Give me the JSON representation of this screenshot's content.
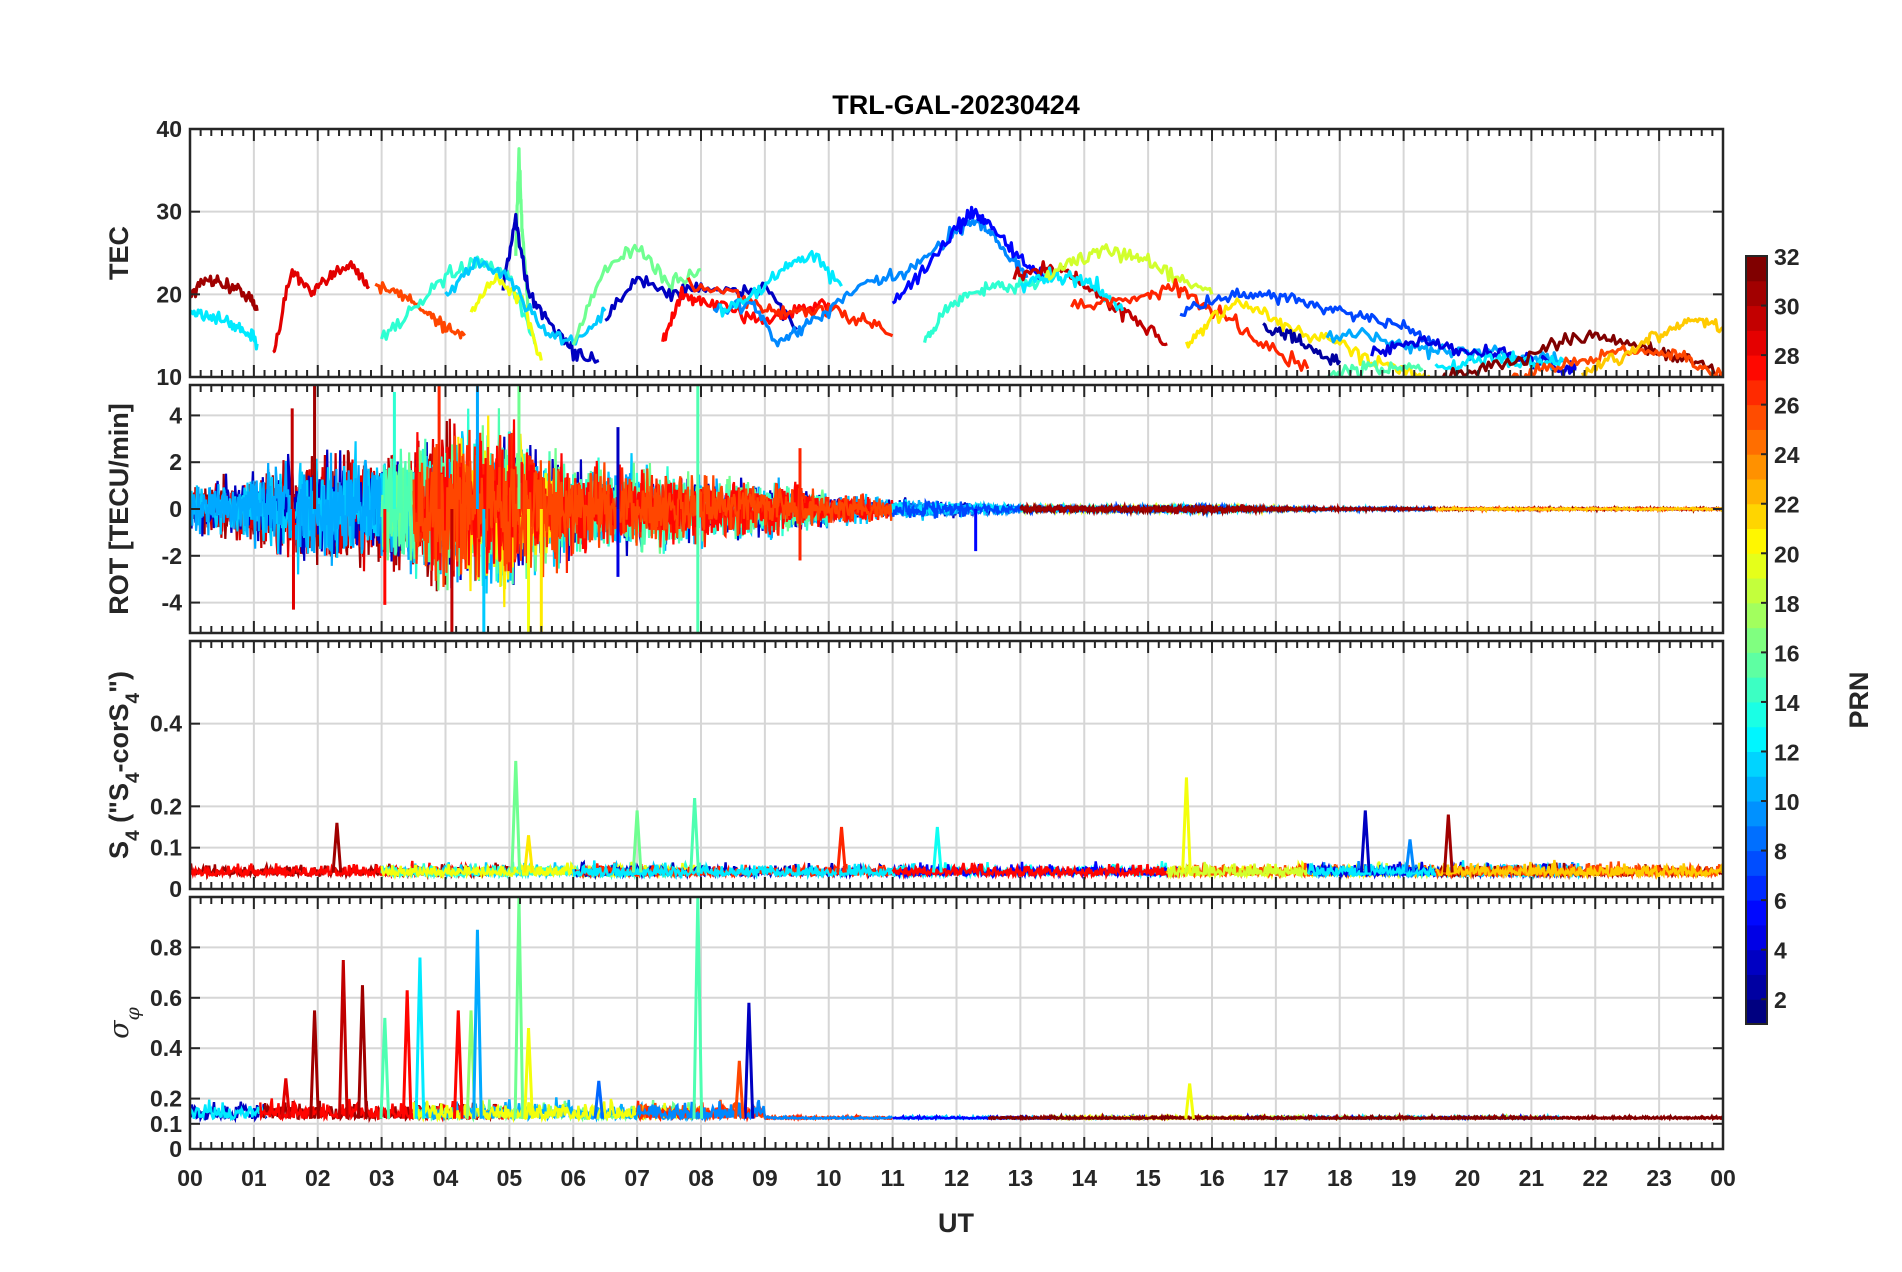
{
  "figure": {
    "title": "TRL-GAL-20230424",
    "xlabel": "UT",
    "x_ticks": [
      "00",
      "01",
      "02",
      "03",
      "04",
      "05",
      "06",
      "07",
      "08",
      "09",
      "10",
      "11",
      "12",
      "13",
      "14",
      "15",
      "16",
      "17",
      "18",
      "19",
      "20",
      "21",
      "22",
      "23",
      "00"
    ]
  },
  "colorbar": {
    "label": "PRN",
    "ticks": [
      "2",
      "4",
      "6",
      "8",
      "10",
      "12",
      "14",
      "16",
      "18",
      "20",
      "22",
      "24",
      "26",
      "28",
      "30",
      "32"
    ],
    "range": [
      1,
      32
    ],
    "colormap": "jet"
  },
  "panels": [
    {
      "id": "tec",
      "ylabel": "TEC",
      "yticks": [
        "10",
        "20",
        "30",
        "40"
      ],
      "ylim": [
        10,
        40
      ]
    },
    {
      "id": "rot",
      "ylabel": "ROT [TECU/min]",
      "yticks": [
        "-4",
        "-2",
        "0",
        "2",
        "4"
      ],
      "ylim": [
        -5.3,
        5.3
      ]
    },
    {
      "id": "s4",
      "ylabel": "S",
      "ylabel_sub": "4",
      "ylabel_rest": " (\"S",
      "ylabel_sub2": "4",
      "ylabel_rest2": "-corS",
      "ylabel_sub3": "4",
      "ylabel_end": "\")",
      "yticks": [
        "0",
        "0.1",
        "0.2",
        "0.4"
      ],
      "ylim": [
        0,
        0.6
      ]
    },
    {
      "id": "sig",
      "ylabel": "σ",
      "ylabel_sub": "φ",
      "yticks": [
        "0",
        "0.1",
        "0.2",
        "0.4",
        "0.6",
        "0.8"
      ],
      "ylim": [
        0,
        1
      ]
    }
  ],
  "chart_data": [
    {
      "type": "line",
      "title": "TRL-GAL-20230424",
      "xlabel": "UT",
      "ylabel": "TEC",
      "xlim": [
        0,
        24
      ],
      "ylim": [
        10,
        40
      ],
      "grid": true,
      "series": [
        {
          "prn": 31,
          "x": [
            0.0,
            0.3,
            0.6,
            0.9,
            1.05
          ],
          "y": [
            20,
            22,
            21,
            20,
            18
          ]
        },
        {
          "prn": 12,
          "x": [
            0.0,
            0.3,
            0.6,
            0.9,
            1.05
          ],
          "y": [
            18,
            17.5,
            16.5,
            15.5,
            14
          ]
        },
        {
          "prn": 29,
          "x": [
            1.3,
            1.6,
            1.9,
            2.2,
            2.5,
            2.8
          ],
          "y": [
            13,
            23,
            20,
            22,
            24,
            21
          ]
        },
        {
          "prn": 26,
          "x": [
            2.9,
            3.3,
            3.7,
            4.0,
            4.3
          ],
          "y": [
            21,
            20,
            18,
            16,
            15
          ]
        },
        {
          "prn": 14,
          "x": [
            3.0,
            3.5,
            4.0,
            4.5,
            5.0,
            5.4
          ],
          "y": [
            15,
            18,
            22,
            24,
            22,
            14
          ]
        },
        {
          "prn": 16,
          "x": [
            5.1,
            5.15,
            5.2,
            5.3
          ],
          "y": [
            25,
            37,
            28,
            18
          ]
        },
        {
          "prn": 3,
          "x": [
            4.9,
            5.1,
            5.3,
            5.6,
            6.0,
            6.4
          ],
          "y": [
            21,
            29,
            20,
            17,
            13,
            12
          ]
        },
        {
          "prn": 20,
          "x": [
            4.4,
            4.8,
            5.2,
            5.5
          ],
          "y": [
            18,
            22,
            19,
            12
          ]
        },
        {
          "prn": 11,
          "x": [
            4.0,
            4.5,
            5.0,
            5.5,
            6.0,
            6.5
          ],
          "y": [
            20,
            24,
            22,
            16,
            14,
            18
          ]
        },
        {
          "prn": 16,
          "x": [
            6.0,
            6.5,
            7.0,
            7.5,
            8.0
          ],
          "y": [
            14,
            23,
            26,
            21,
            23
          ]
        },
        {
          "prn": 3,
          "x": [
            6.5,
            7.0,
            7.5,
            8.0,
            8.5,
            9.0,
            9.5
          ],
          "y": [
            17,
            22,
            20,
            21,
            20,
            21,
            16
          ]
        },
        {
          "prn": 28,
          "x": [
            7.4,
            7.7,
            8.0,
            8.5,
            9.0,
            9.5,
            10.0
          ],
          "y": [
            14,
            20,
            19,
            18,
            17,
            18,
            19
          ]
        },
        {
          "prn": 27,
          "x": [
            7.8,
            8.5,
            9.0,
            9.5,
            10.0,
            10.5,
            11.0
          ],
          "y": [
            21,
            20,
            18,
            18,
            18,
            17,
            15
          ]
        },
        {
          "prn": 9,
          "x": [
            8.2,
            8.8,
            9.2,
            9.6,
            10.0,
            10.5,
            11.0,
            11.5,
            12.0,
            12.3,
            12.6,
            12.9,
            13.1
          ],
          "y": [
            18,
            19,
            14,
            16,
            18,
            21,
            22,
            24,
            28,
            29,
            27,
            24,
            22
          ]
        },
        {
          "prn": 12,
          "x": [
            8.3,
            8.8,
            9.3,
            9.7,
            10.2
          ],
          "y": [
            18,
            20,
            23,
            25,
            21
          ]
        },
        {
          "prn": 14,
          "x": [
            11.5,
            11.8,
            12.2,
            12.6,
            13.0,
            13.4
          ],
          "y": [
            14,
            18,
            20,
            21,
            21,
            22
          ]
        },
        {
          "prn": 5,
          "x": [
            11.0,
            11.5,
            12.0,
            12.3,
            12.6,
            13.0,
            13.4
          ],
          "y": [
            19,
            23,
            28,
            30,
            28,
            24,
            22
          ]
        },
        {
          "prn": 30,
          "x": [
            12.9,
            13.3,
            13.7,
            14.0,
            14.4,
            14.8,
            15.3
          ],
          "y": [
            22,
            23,
            23,
            21,
            19,
            17,
            14
          ]
        },
        {
          "prn": 12,
          "x": [
            13.0,
            13.4,
            13.8,
            14.2,
            14.6
          ],
          "y": [
            21,
            22,
            22,
            21,
            18
          ]
        },
        {
          "prn": 19,
          "x": [
            13.4,
            13.8,
            14.2,
            14.6,
            15.0,
            15.5,
            16.0
          ],
          "y": [
            22,
            24,
            25,
            25,
            24,
            22,
            20
          ]
        },
        {
          "prn": 27,
          "x": [
            13.8,
            14.5,
            15.0,
            15.4,
            15.8,
            16.3,
            16.8,
            17.5
          ],
          "y": [
            19,
            19,
            20,
            21,
            19,
            17,
            14,
            11
          ]
        },
        {
          "prn": 7,
          "x": [
            15.5,
            16.0,
            16.5,
            17.0,
            17.5,
            18.0,
            18.5,
            19.0,
            19.5
          ],
          "y": [
            18,
            19,
            20,
            20,
            19,
            18,
            17,
            16,
            14
          ]
        },
        {
          "prn": 21,
          "x": [
            15.6,
            16.0,
            16.5,
            17.0,
            17.5,
            18.0,
            18.5,
            19.0,
            19.5
          ],
          "y": [
            14,
            17,
            19,
            17,
            15,
            14,
            12,
            11,
            10
          ]
        },
        {
          "prn": 2,
          "x": [
            16.8,
            17.2,
            17.6,
            18.0
          ],
          "y": [
            16,
            15,
            13,
            12
          ]
        },
        {
          "prn": 10,
          "x": [
            17.8,
            18.5,
            19.0,
            19.5,
            20.0,
            20.5,
            21.0,
            21.5
          ],
          "y": [
            15,
            15,
            14,
            13,
            13,
            13,
            12,
            12
          ]
        },
        {
          "prn": 15,
          "x": [
            17.8,
            18.3,
            18.8,
            19.3
          ],
          "y": [
            10,
            11,
            11,
            11
          ]
        },
        {
          "prn": 4,
          "x": [
            18.5,
            19.0,
            19.5,
            20.0,
            20.5,
            21.0,
            21.5,
            21.7
          ],
          "y": [
            13,
            14,
            14,
            13,
            13,
            12,
            11,
            11
          ]
        },
        {
          "prn": 12,
          "x": [
            19.5,
            20.0,
            20.5,
            21.0,
            21.5
          ],
          "y": [
            11,
            12,
            12,
            12,
            12
          ]
        },
        {
          "prn": 32,
          "x": [
            19.6,
            20.2,
            20.8,
            21.4,
            22.0,
            22.5,
            23.0,
            23.5,
            24.0
          ],
          "y": [
            10,
            11,
            12,
            14,
            15,
            14,
            13,
            12,
            10
          ]
        },
        {
          "prn": 26,
          "x": [
            20.7,
            21.2,
            21.8,
            22.4,
            23.0,
            23.5,
            24.0
          ],
          "y": [
            10,
            11,
            12,
            13,
            13,
            12,
            10
          ]
        },
        {
          "prn": 22,
          "x": [
            21.8,
            22.3,
            22.8,
            23.2,
            23.6,
            24.0
          ],
          "y": [
            10,
            12,
            14,
            16,
            17,
            16
          ]
        }
      ]
    },
    {
      "type": "line",
      "ylabel": "ROT [TECU/min]",
      "xlim": [
        0,
        24
      ],
      "ylim": [
        -5.3,
        5.3
      ],
      "grid": true,
      "envelope": {
        "x": [
          0,
          1,
          2,
          3,
          4,
          5,
          6,
          7,
          8,
          9,
          10,
          11,
          12,
          13,
          14,
          15,
          16,
          17,
          18,
          19,
          20,
          21,
          22,
          23,
          24
        ],
        "amp": [
          1.4,
          2.0,
          3.5,
          3.0,
          4.5,
          5.0,
          2.5,
          2.5,
          2.0,
          1.6,
          1.0,
          0.6,
          0.45,
          0.25,
          0.2,
          0.25,
          0.3,
          0.12,
          0.1,
          0.1,
          0.08,
          0.08,
          0.08,
          0.08,
          0.08
        ]
      },
      "spikes": [
        {
          "x": 1.6,
          "y": 4.3,
          "prn": 30
        },
        {
          "x": 1.62,
          "y": -4.3,
          "prn": 29
        },
        {
          "x": 1.95,
          "y": 5.3,
          "prn": 31
        },
        {
          "x": 3.2,
          "y": 5.0,
          "prn": 14
        },
        {
          "x": 3.05,
          "y": -4.1,
          "prn": 28
        },
        {
          "x": 3.9,
          "y": 5.3,
          "prn": 27
        },
        {
          "x": 4.1,
          "y": -5.3,
          "prn": 30
        },
        {
          "x": 4.5,
          "y": 5.3,
          "prn": 10
        },
        {
          "x": 4.6,
          "y": -5.3,
          "prn": 11
        },
        {
          "x": 5.15,
          "y": 5.3,
          "prn": 16
        },
        {
          "x": 5.3,
          "y": -5.3,
          "prn": 20
        },
        {
          "x": 5.5,
          "y": -5.3,
          "prn": 21
        },
        {
          "x": 6.7,
          "y": -2.9,
          "prn": 4
        },
        {
          "x": 6.7,
          "y": 3.5,
          "prn": 3
        },
        {
          "x": 7.95,
          "y": 5.3,
          "prn": 15
        },
        {
          "x": 7.95,
          "y": -5.3,
          "prn": 15
        },
        {
          "x": 9.55,
          "y": 2.6,
          "prn": 27
        },
        {
          "x": 9.55,
          "y": -2.2,
          "prn": 27
        },
        {
          "x": 12.3,
          "y": -1.8,
          "prn": 5
        }
      ]
    },
    {
      "type": "line",
      "ylabel": "S4 (\"S4-corS4\")",
      "xlim": [
        0,
        24
      ],
      "ylim": [
        0,
        0.6
      ],
      "grid": true,
      "baseline": 0.04,
      "spikes": [
        {
          "x": 2.3,
          "y": 0.16,
          "prn": 31
        },
        {
          "x": 5.1,
          "y": 0.31,
          "prn": 16
        },
        {
          "x": 5.3,
          "y": 0.13,
          "prn": 21
        },
        {
          "x": 7.0,
          "y": 0.19,
          "prn": 16
        },
        {
          "x": 7.9,
          "y": 0.22,
          "prn": 15
        },
        {
          "x": 10.2,
          "y": 0.15,
          "prn": 27
        },
        {
          "x": 11.7,
          "y": 0.15,
          "prn": 13
        },
        {
          "x": 15.6,
          "y": 0.27,
          "prn": 20
        },
        {
          "x": 18.4,
          "y": 0.19,
          "prn": 3
        },
        {
          "x": 19.7,
          "y": 0.18,
          "prn": 31
        },
        {
          "x": 19.1,
          "y": 0.12,
          "prn": 9
        }
      ]
    },
    {
      "type": "line",
      "ylabel": "σφ",
      "xlim": [
        0,
        24
      ],
      "ylim": [
        0,
        1
      ],
      "grid": true,
      "baseline": 0.12,
      "spikes": [
        {
          "x": 1.5,
          "y": 0.28,
          "prn": 29
        },
        {
          "x": 1.95,
          "y": 0.55,
          "prn": 31
        },
        {
          "x": 2.4,
          "y": 0.75,
          "prn": 30
        },
        {
          "x": 2.7,
          "y": 0.65,
          "prn": 31
        },
        {
          "x": 3.05,
          "y": 0.52,
          "prn": 15
        },
        {
          "x": 3.4,
          "y": 0.63,
          "prn": 28
        },
        {
          "x": 3.6,
          "y": 0.76,
          "prn": 12
        },
        {
          "x": 4.2,
          "y": 0.55,
          "prn": 28
        },
        {
          "x": 4.4,
          "y": 0.55,
          "prn": 17
        },
        {
          "x": 4.5,
          "y": 0.87,
          "prn": 10
        },
        {
          "x": 5.15,
          "y": 1.0,
          "prn": 16
        },
        {
          "x": 5.3,
          "y": 0.48,
          "prn": 20
        },
        {
          "x": 6.4,
          "y": 0.27,
          "prn": 8
        },
        {
          "x": 7.95,
          "y": 1.0,
          "prn": 15
        },
        {
          "x": 8.75,
          "y": 0.58,
          "prn": 3
        },
        {
          "x": 8.6,
          "y": 0.35,
          "prn": 26
        },
        {
          "x": 15.65,
          "y": 0.26,
          "prn": 20
        }
      ]
    }
  ]
}
